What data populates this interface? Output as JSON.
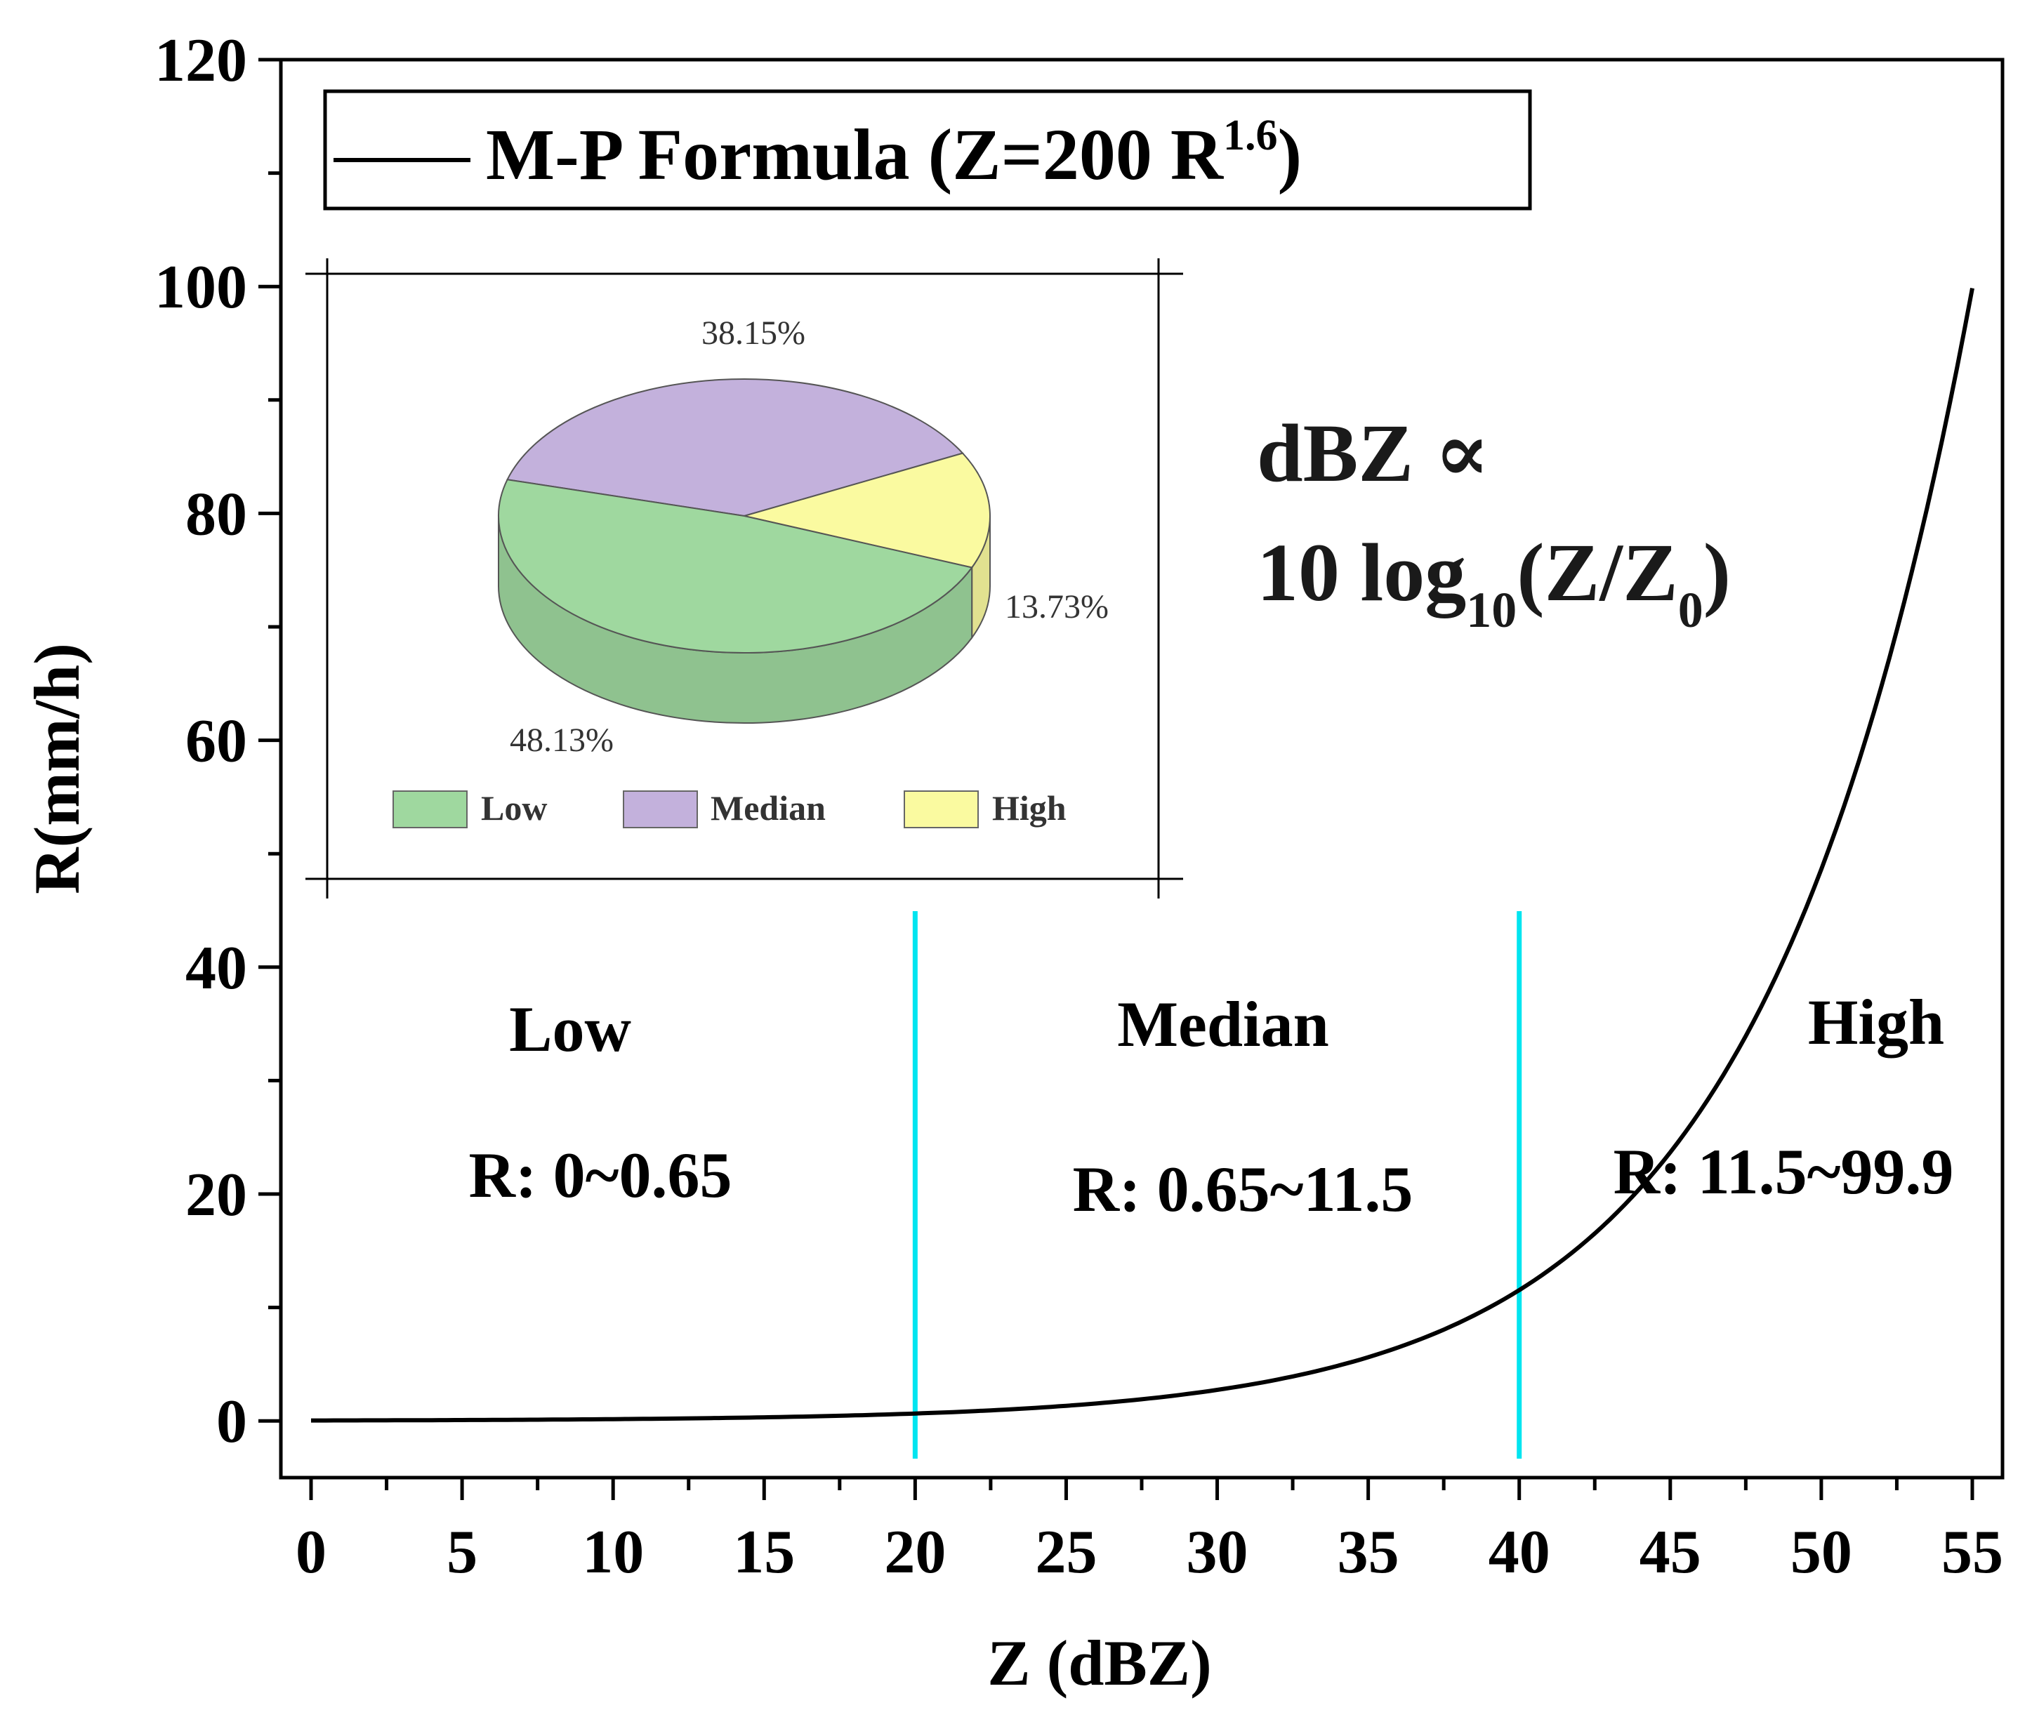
{
  "chart_data": {
    "type": "line",
    "title": "",
    "xlabel": "Z (dBZ)",
    "ylabel": "R(mm/h)",
    "xlim": [
      -1,
      56
    ],
    "ylim": [
      -5,
      120
    ],
    "xticks": [
      0,
      5,
      10,
      15,
      20,
      25,
      30,
      35,
      40,
      45,
      50,
      55
    ],
    "yticks": [
      0,
      20,
      40,
      60,
      80,
      100,
      120
    ],
    "series": [
      {
        "name": "M-P Formula (Z=200 R^1.6)",
        "formula": "R = (10^(Z/10) / 200)^(1/1.6)",
        "color": "#000000",
        "x_range": [
          0,
          55
        ],
        "sample_points": [
          [
            0,
            0.04
          ],
          [
            10,
            0.15
          ],
          [
            20,
            0.65
          ],
          [
            30,
            2.73
          ],
          [
            40,
            11.53
          ],
          [
            45,
            23.7
          ],
          [
            50,
            48.6
          ],
          [
            55,
            99.9
          ]
        ]
      }
    ],
    "legend": {
      "prefix": "M-P Formula (Z=200 R",
      "superscript": "1.6",
      "suffix": ")"
    },
    "thresholds": [
      {
        "x": 20,
        "color": "#00e5f0"
      },
      {
        "x": 40,
        "color": "#00e5f0"
      }
    ],
    "regions": [
      {
        "name": "Low",
        "range": "R: 0~0.65"
      },
      {
        "name": "Median",
        "range": "R: 0.65~11.5"
      },
      {
        "name": "High",
        "range": "R: 11.5~99.9"
      }
    ],
    "annotation": {
      "line1": "dBZ ∝",
      "line2_prefix": "10 log",
      "line2_sub": "10",
      "line2_mid": "(Z/Z",
      "line2_sub2": "0",
      "line2_suffix": ")"
    },
    "inset_pie": {
      "type": "pie",
      "slices": [
        {
          "label": "Low",
          "value": 48.13,
          "value_label": "48.13%",
          "color": "#9fd89f"
        },
        {
          "label": "Median",
          "value": 38.15,
          "value_label": "38.15%",
          "color": "#c3b1dc"
        },
        {
          "label": "High",
          "value": 13.73,
          "value_label": "13.73%",
          "color": "#fafaa0"
        }
      ]
    }
  }
}
